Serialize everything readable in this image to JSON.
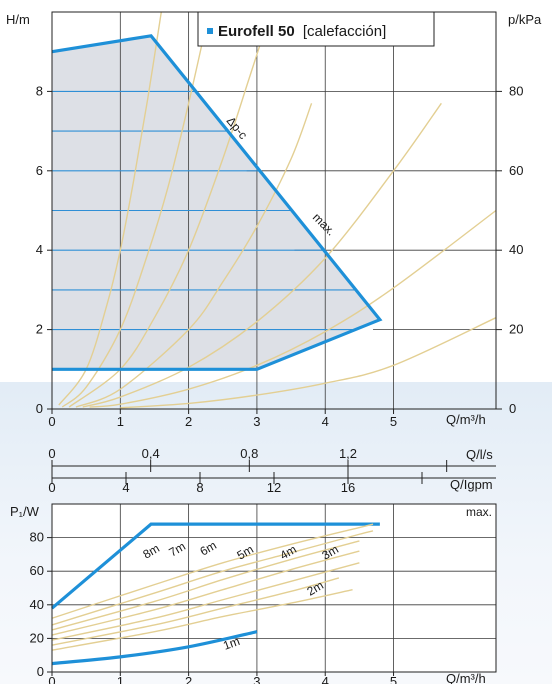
{
  "chart_data": [
    {
      "type": "line",
      "title": "Eurofell 50",
      "subtitle": "[calefacción]",
      "ylabel": "H/m",
      "y2label": "p/kPa",
      "xlabel": "Q/m³/h",
      "xlim": [
        0,
        6.5
      ],
      "ylim": [
        0,
        10
      ],
      "y2lim": [
        0,
        100
      ],
      "x_ticks": [
        "0",
        "1",
        "2",
        "3",
        "4",
        "5"
      ],
      "y_ticks": [
        "0",
        "2",
        "4",
        "6",
        "8"
      ],
      "y2_ticks": [
        "0",
        "20",
        "40",
        "60",
        "80"
      ],
      "grid": true,
      "horizontal_lines_y": [
        1,
        2,
        3,
        4,
        5,
        6,
        7,
        8
      ],
      "max_curve": {
        "x": [
          0,
          1.45,
          4.8,
          3.0,
          0
        ],
        "y": [
          9.0,
          9.4,
          2.25,
          1.0,
          1.0
        ]
      },
      "max_label": "max.",
      "dpc_label": "Δp-c",
      "system_curves": [
        {
          "x": [
            0.1,
            0.5,
            0.8,
            1.0,
            1.2,
            1.4,
            1.6
          ],
          "y": [
            0.1,
            1.0,
            2.6,
            4.0,
            5.8,
            7.8,
            10.0
          ]
        },
        {
          "x": [
            0.15,
            0.5,
            1.0,
            1.4,
            1.7,
            2.0,
            2.3
          ],
          "y": [
            0.05,
            0.55,
            2.0,
            3.9,
            5.6,
            7.7,
            10.0
          ]
        },
        {
          "x": [
            0.25,
            1.0,
            1.5,
            2.0,
            2.5,
            2.9,
            3.2
          ],
          "y": [
            0.05,
            1.0,
            2.3,
            4.0,
            6.3,
            8.4,
            10.0
          ]
        },
        {
          "x": [
            0.35,
            1.0,
            2.0,
            2.5,
            3.0,
            3.5,
            3.8
          ],
          "y": [
            0.05,
            0.5,
            2.0,
            3.2,
            4.6,
            6.3,
            7.7
          ]
        },
        {
          "x": [
            0.45,
            1.0,
            2.0,
            3.0,
            4.0,
            5.0,
            5.7
          ],
          "y": [
            0.05,
            0.3,
            1.05,
            2.2,
            3.8,
            6.0,
            7.7
          ]
        },
        {
          "x": [
            0.55,
            1.0,
            2.0,
            3.0,
            4.0,
            5.0,
            6.5
          ],
          "y": [
            0.05,
            0.12,
            0.5,
            1.1,
            1.95,
            3.05,
            5.0
          ]
        },
        {
          "x": [
            1.0,
            2.0,
            3.0,
            4.0,
            5.0,
            6.5
          ],
          "y": [
            0.03,
            0.14,
            0.35,
            0.65,
            1.1,
            2.3
          ]
        }
      ]
    },
    {
      "type": "axis",
      "xlabel": "Q/l/s",
      "xlim": [
        0,
        1.8
      ],
      "ticks": [
        0,
        0.4,
        0.8,
        1.2,
        1.6
      ],
      "labels": [
        "0",
        "0,4",
        "0,8",
        "1,2",
        ""
      ]
    },
    {
      "type": "axis",
      "xlabel": "Q/Igpm",
      "xlim": [
        0,
        24
      ],
      "ticks": [
        0,
        4,
        8,
        12,
        16,
        20
      ],
      "labels": [
        "0",
        "4",
        "8",
        "12",
        "16",
        ""
      ]
    },
    {
      "type": "line",
      "ylabel": "P₁/W",
      "xlabel": "Q/m³/h",
      "xlim": [
        0,
        6.5
      ],
      "ylim": [
        0,
        100
      ],
      "x_ticks": [
        "0",
        "1",
        "2",
        "3",
        "4",
        "5"
      ],
      "y_ticks": [
        "0",
        "20",
        "40",
        "60",
        "80"
      ],
      "grid": true,
      "series": [
        {
          "name": "max.",
          "x": [
            0,
            1.45,
            4.8
          ],
          "y": [
            38,
            88,
            88
          ]
        },
        {
          "name": "8m",
          "x": [
            0,
            1.5,
            2.5,
            3.5,
            4.5,
            4.7
          ],
          "y": [
            32,
            52,
            65,
            76,
            86,
            88
          ]
        },
        {
          "name": "7m",
          "x": [
            0,
            1.5,
            2.5,
            3.5,
            4.5,
            4.7
          ],
          "y": [
            28,
            47,
            60,
            71,
            82,
            84
          ]
        },
        {
          "name": "6m",
          "x": [
            0,
            1.5,
            2.5,
            3.5,
            4.5
          ],
          "y": [
            25,
            42,
            55,
            67,
            78
          ]
        },
        {
          "name": "5m",
          "x": [
            0,
            1.5,
            2.5,
            3.5,
            4.5
          ],
          "y": [
            22,
            37,
            49,
            61,
            72
          ]
        },
        {
          "name": "4m",
          "x": [
            0,
            1.5,
            2.5,
            3.5,
            4.5
          ],
          "y": [
            19,
            32,
            43,
            54,
            65
          ]
        },
        {
          "name": "3m",
          "x": [
            0,
            1.5,
            2.5,
            3.5,
            4.2
          ],
          "y": [
            16,
            28,
            38,
            48,
            56
          ]
        },
        {
          "name": "2m",
          "x": [
            0,
            1.5,
            2.5,
            3.5,
            4.4
          ],
          "y": [
            13,
            24,
            33,
            41,
            49
          ]
        },
        {
          "name": "1m",
          "x": [
            0,
            1.0,
            2.0,
            3.0
          ],
          "y": [
            5,
            9,
            15,
            24
          ]
        }
      ]
    }
  ]
}
